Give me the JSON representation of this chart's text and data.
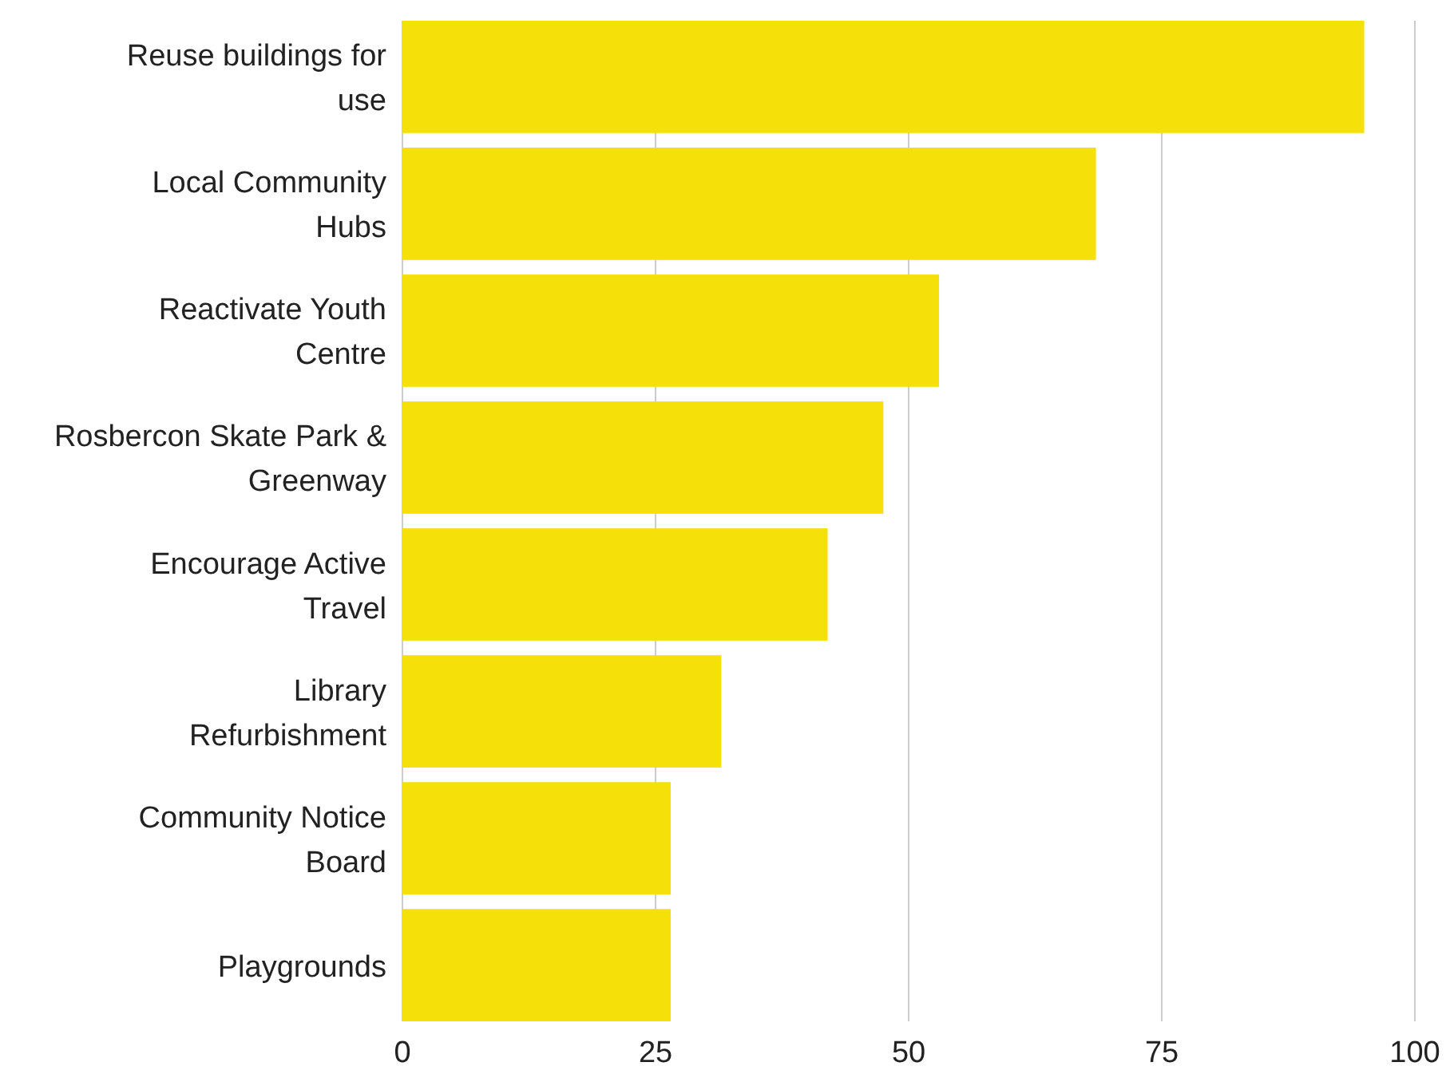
{
  "chart_data": {
    "type": "bar",
    "orientation": "horizontal",
    "categories": [
      "Reuse buildings for\nuse",
      "Local Community\nHubs",
      "Reactivate Youth\nCentre",
      "Rosbercon Skate Park &\nGreenway",
      "Encourage Active\nTravel",
      "Library\nRefurbishment",
      "Community Notice\nBoard",
      "Playgrounds"
    ],
    "values": [
      95,
      68.5,
      53,
      47.5,
      42,
      31.5,
      26.5,
      26.5
    ],
    "color": "#f5e00a",
    "xlim": [
      0,
      100
    ],
    "xticks": [
      0,
      25,
      50,
      75,
      100
    ],
    "grid": "x"
  }
}
